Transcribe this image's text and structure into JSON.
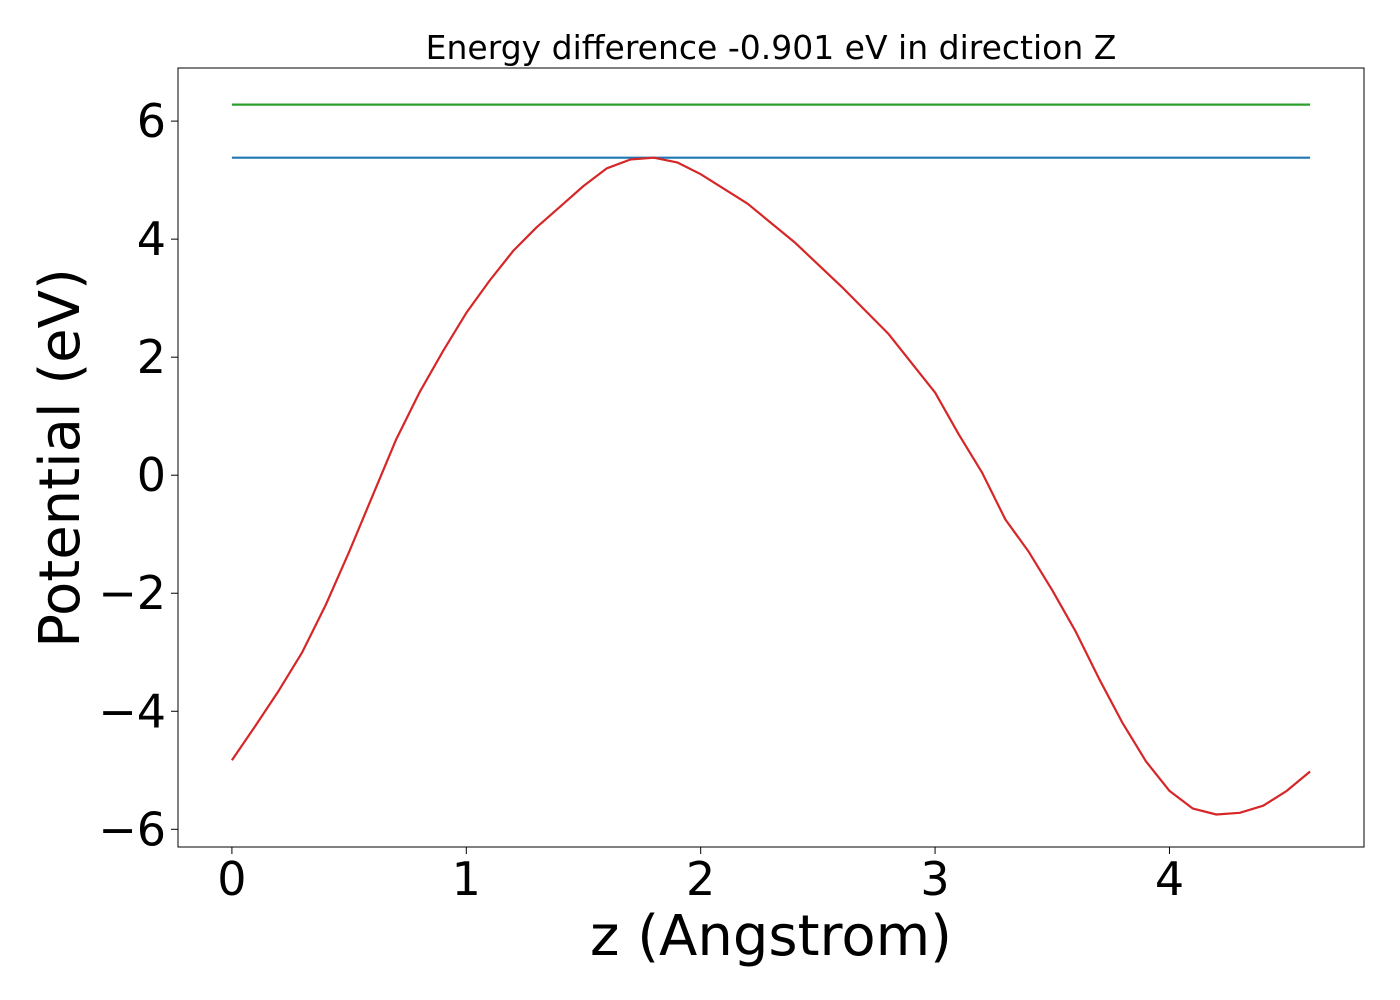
{
  "chart_data": {
    "type": "line",
    "title": "Energy difference -0.901 eV in direction Z",
    "xlabel": "z (Angstrom)",
    "ylabel": "Potential (eV)",
    "xlim": [
      -0.23,
      4.83
    ],
    "ylim": [
      -6.3,
      6.9
    ],
    "xticks": [
      0,
      1,
      2,
      3,
      4
    ],
    "yticks": [
      -6,
      -4,
      -2,
      0,
      2,
      4,
      6
    ],
    "xtick_labels": [
      "0",
      "1",
      "2",
      "3",
      "4"
    ],
    "ytick_labels": [
      "−6",
      "−4",
      "−2",
      "0",
      "2",
      "4",
      "6"
    ],
    "grid": false,
    "series": [
      {
        "color": "#2ca02c",
        "x": [
          0,
          4.6
        ],
        "y": [
          6.28,
          6.28
        ]
      },
      {
        "color": "#1f77b4",
        "x": [
          0,
          4.6
        ],
        "y": [
          5.38,
          5.38
        ]
      },
      {
        "color": "#d62728",
        "x": [
          0,
          0.1,
          0.2,
          0.3,
          0.4,
          0.5,
          0.6,
          0.7,
          0.8,
          0.9,
          1.0,
          1.1,
          1.2,
          1.3,
          1.4,
          1.5,
          1.6,
          1.7,
          1.8,
          1.9,
          2.0,
          2.2,
          2.4,
          2.6,
          2.8,
          3.0,
          3.1,
          3.2,
          3.3,
          3.4,
          3.5,
          3.6,
          3.7,
          3.8,
          3.9,
          4.0,
          4.1,
          4.2,
          4.3,
          4.4,
          4.5,
          4.6
        ],
        "y": [
          -4.83,
          -4.25,
          -3.65,
          -3.0,
          -2.2,
          -1.3,
          -0.35,
          0.6,
          1.4,
          2.1,
          2.75,
          3.3,
          3.8,
          4.2,
          4.55,
          4.9,
          5.2,
          5.35,
          5.38,
          5.3,
          5.1,
          4.6,
          3.95,
          3.2,
          2.4,
          1.4,
          0.7,
          0.05,
          -0.75,
          -1.3,
          -1.95,
          -2.65,
          -3.45,
          -4.2,
          -4.85,
          -5.35,
          -5.65,
          -5.75,
          -5.72,
          -5.6,
          -5.35,
          -5.02
        ]
      }
    ]
  }
}
